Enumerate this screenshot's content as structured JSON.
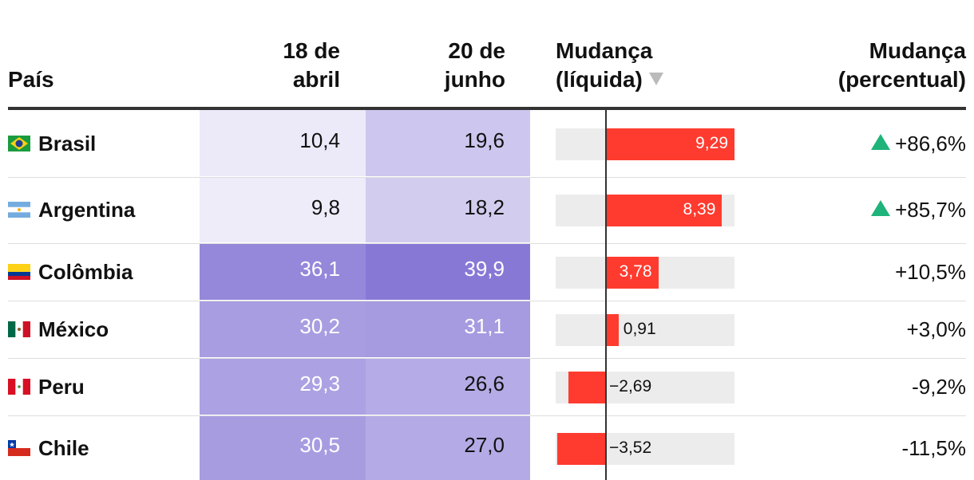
{
  "chart_data": {
    "type": "table",
    "columns": [
      {
        "key": "country",
        "label": "País"
      },
      {
        "key": "apr18",
        "label_lines": [
          "18 de",
          "abril"
        ]
      },
      {
        "key": "jun20",
        "label_lines": [
          "20 de",
          "junho"
        ]
      },
      {
        "key": "net",
        "label_lines": [
          "Mudança",
          "(líquida)"
        ],
        "sort_icon": "sort-down-triangle-icon"
      },
      {
        "key": "pct",
        "label_lines": [
          "Mudança",
          "(percentual)"
        ]
      }
    ],
    "heat_range": [
      9.8,
      39.9
    ],
    "bar_domain": [
      -3.52,
      9.29
    ],
    "colors": {
      "bar": "#ff3b2f",
      "up": "#1eb37a",
      "heat_low": "#ffffff",
      "heat_high": "#8878d6"
    },
    "rows": [
      {
        "country": "Brasil",
        "flag": "brazil-flag-icon",
        "apr18": 10.4,
        "apr18_label": "10,4",
        "jun20": 19.6,
        "jun20_label": "19,6",
        "net": 9.29,
        "net_label": "9,29",
        "pct": "+86,6%",
        "up": true
      },
      {
        "country": "Argentina",
        "flag": "argentina-flag-icon",
        "apr18": 9.8,
        "apr18_label": "9,8",
        "jun20": 18.2,
        "jun20_label": "18,2",
        "net": 8.39,
        "net_label": "8,39",
        "pct": "+85,7%",
        "up": true
      },
      {
        "country": "Colômbia",
        "flag": "colombia-flag-icon",
        "apr18": 36.1,
        "apr18_label": "36,1",
        "jun20": 39.9,
        "jun20_label": "39,9",
        "net": 3.78,
        "net_label": "3,78",
        "pct": "+10,5%",
        "up": false
      },
      {
        "country": "México",
        "flag": "mexico-flag-icon",
        "apr18": 30.2,
        "apr18_label": "30,2",
        "jun20": 31.1,
        "jun20_label": "31,1",
        "net": 0.91,
        "net_label": "0,91",
        "pct": "+3,0%",
        "up": false
      },
      {
        "country": "Peru",
        "flag": "peru-flag-icon",
        "apr18": 29.3,
        "apr18_label": "29,3",
        "jun20": 26.6,
        "jun20_label": "26,6",
        "net": -2.69,
        "net_label": "−2,69",
        "pct": "-9,2%",
        "up": false
      },
      {
        "country": "Chile",
        "flag": "chile-flag-icon",
        "apr18": 30.5,
        "apr18_label": "30,5",
        "jun20": 27.0,
        "jun20_label": "27,0",
        "net": -3.52,
        "net_label": "−3,52",
        "pct": "-11,5%",
        "up": false
      }
    ]
  }
}
